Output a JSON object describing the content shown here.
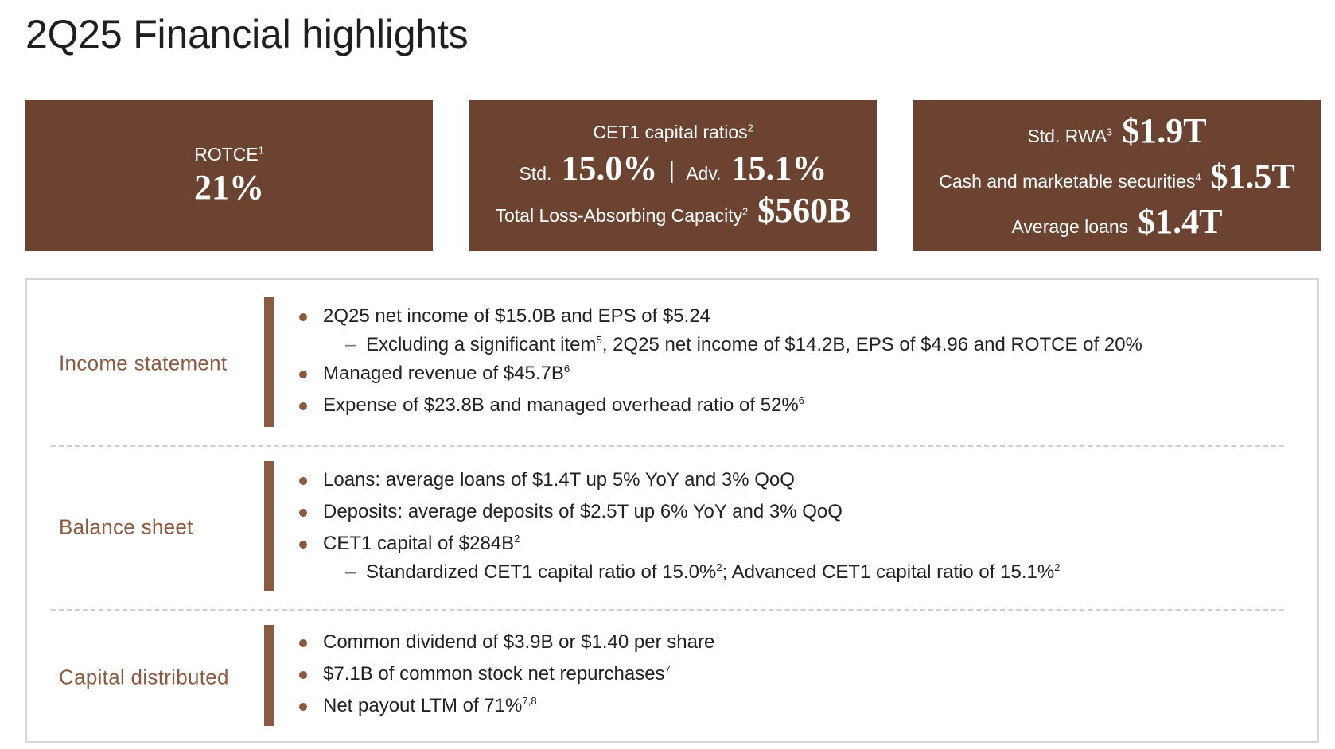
{
  "title": "2Q25 Financial highlights",
  "colors": {
    "brown_box": "#6b4330",
    "accent": "#8b5a41",
    "panel_border": "#d6d6d6"
  },
  "kpis": {
    "rotce": {
      "label": "ROTCE",
      "sup": "1",
      "value": "21%"
    },
    "cet1": {
      "label": "CET1 capital ratios",
      "label_sup": "2",
      "std_label": "Std.",
      "std_value": "15.0%",
      "separator": "|",
      "adv_label": "Adv.",
      "adv_value": "15.1%",
      "tlac_label": "Total Loss-Absorbing Capacity",
      "tlac_sup": "2",
      "tlac_value": "$560B"
    },
    "balance": {
      "rwa_label": "Std. RWA",
      "rwa_sup": "3",
      "rwa_value": "$1.9T",
      "cash_label": "Cash and marketable securities",
      "cash_sup": "4",
      "cash_value": "$1.5T",
      "loans_label": "Average loans",
      "loans_value": "$1.4T"
    }
  },
  "sections": {
    "income": {
      "label": "Income statement",
      "b1": "2Q25 net income of $15.0B and EPS of $5.24",
      "s1a": "Excluding a significant item",
      "s1a_sup": "5",
      "s1b": ", 2Q25 net income of $14.2B, EPS of $4.96 and ROTCE of 20%",
      "b2": "Managed revenue of $45.7B",
      "b2_sup": "6",
      "b3": "Expense of $23.8B and managed overhead ratio of 52%",
      "b3_sup": "6"
    },
    "balance": {
      "label": "Balance sheet",
      "b1": "Loans: average loans of $1.4T up 5% YoY and 3% QoQ",
      "b2": "Deposits: average deposits of $2.5T up 6% YoY and 3% QoQ",
      "b3": "CET1 capital of $284B",
      "b3_sup": "2",
      "s1a": "Standardized CET1 capital ratio of 15.0%",
      "s1a_sup": "2",
      "s1b": "; Advanced CET1 capital ratio of 15.1%",
      "s1b_sup": "2"
    },
    "capital": {
      "label": "Capital distributed",
      "b1": "Common dividend of $3.9B or $1.40 per share",
      "b2": "$7.1B of common stock net repurchases",
      "b2_sup": "7",
      "b3": "Net payout LTM of 71%",
      "b3_sup": "7,8"
    }
  }
}
